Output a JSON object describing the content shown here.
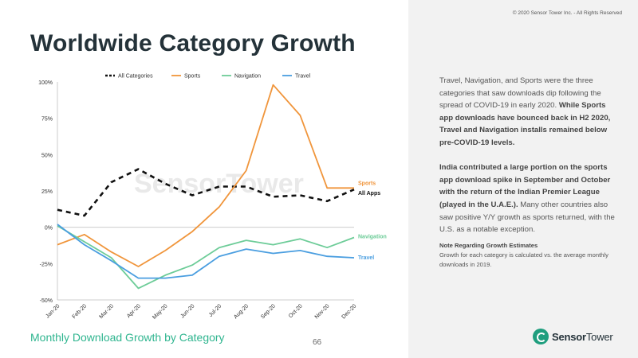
{
  "page": {
    "title": "Worldwide Category Growth",
    "subtitle": "Monthly Download Growth by Category",
    "page_number": "66",
    "copyright": "© 2020 Sensor Tower Inc. - All Rights Reserved",
    "watermark": "SensorTower",
    "logo_word_1": "Sensor",
    "logo_word_2": "Tower"
  },
  "panel": {
    "p1_plain": "Travel, Navigation, and Sports were the three categories that saw downloads dip following the spread of COVID-19 in early 2020. ",
    "p1_bold": "While Sports app downloads have bounced back in H2 2020, Travel and Navigation installs remained below pre-COVID-19 levels.",
    "p2_bold": "India contributed a large portion on the sports app download spike in September and October with the return of the Indian Premier League (played in the U.A.E.).",
    "p2_plain": " Many other countries also saw positive Y/Y growth as sports returned, with the U.S. as a notable exception.",
    "note_title": "Note Regarding Growth Estimates",
    "note_body": "Growth for each category is calculated vs. the average monthly downloads in 2019."
  },
  "chart_data": {
    "type": "line",
    "categories": [
      "Jan-20",
      "Feb-20",
      "Mar-20",
      "Apr-20",
      "May-20",
      "Jun-20",
      "Jul-20",
      "Aug-20",
      "Sep-20",
      "Oct-20",
      "Nov-20",
      "Dec-20"
    ],
    "ylim": [
      -50,
      100
    ],
    "yticks": [
      -50,
      -25,
      0,
      25,
      50,
      75,
      100
    ],
    "ytick_labels": [
      "-50%",
      "-25%",
      "0%",
      "25%",
      "50%",
      "75%",
      "100%"
    ],
    "legend_position": "top",
    "series": [
      {
        "name": "All Categories",
        "end_label": "All Apps",
        "color": "#111111",
        "dashed": true,
        "values": [
          12,
          8,
          31,
          40,
          30,
          22,
          28,
          28,
          21,
          22,
          18,
          26
        ]
      },
      {
        "name": "Sports",
        "end_label": "Sports",
        "color": "#f0953b",
        "dashed": false,
        "values": [
          -12,
          -5,
          -17,
          -27,
          -16,
          -3,
          14,
          39,
          98,
          77,
          27,
          27
        ]
      },
      {
        "name": "Navigation",
        "end_label": "Navigation",
        "color": "#6dcc98",
        "dashed": false,
        "values": [
          1,
          -10,
          -21,
          -42,
          -33,
          -26,
          -14,
          -9,
          -12,
          -8,
          -14,
          -7
        ]
      },
      {
        "name": "Travel",
        "end_label": "Travel",
        "color": "#4a9ee0",
        "dashed": false,
        "values": [
          2,
          -12,
          -23,
          -35,
          -35,
          -33,
          -20,
          -15,
          -18,
          -16,
          -20,
          -21
        ]
      }
    ]
  }
}
